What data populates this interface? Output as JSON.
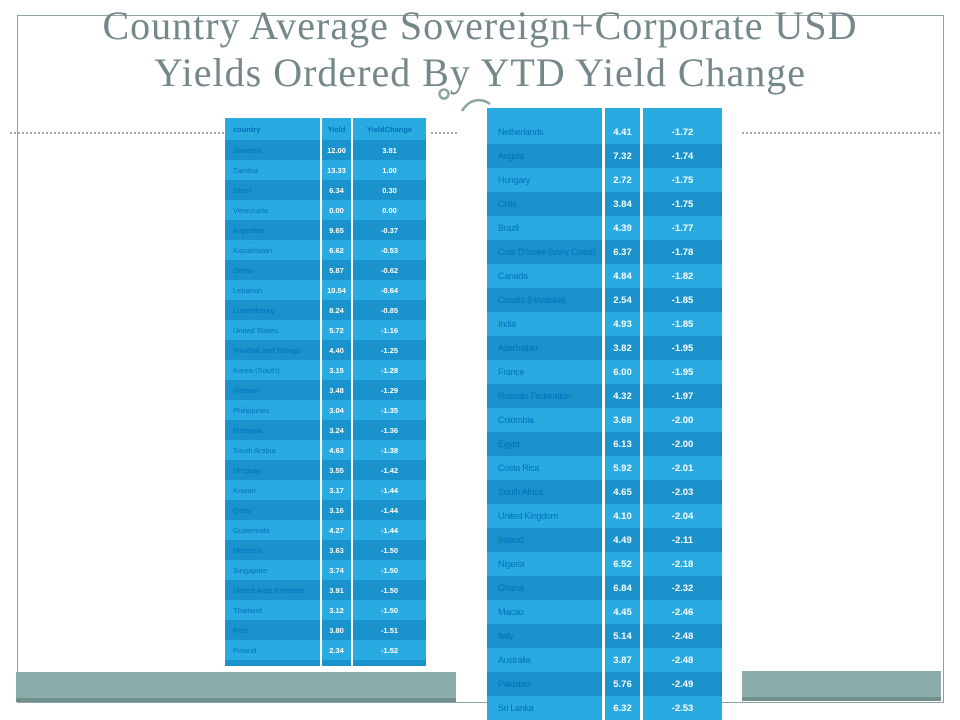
{
  "title": {
    "line1": "Country Average Sovereign+Corporate USD",
    "line2": "Yields Ordered By YTD Yield Change"
  },
  "left_table": {
    "headers": [
      "country",
      "Yield",
      "YieldChange"
    ],
    "rows": [
      [
        "Jamaica",
        "12.00",
        "3.81"
      ],
      [
        "Zambia",
        "13.33",
        "1.00"
      ],
      [
        "Israel",
        "6.34",
        "0.30"
      ],
      [
        "Venezuela",
        "0.00",
        "0.00"
      ],
      [
        "Argentina",
        "9.65",
        "-0.37"
      ],
      [
        "Kazakhstan",
        "6.62",
        "-0.53"
      ],
      [
        "Oman",
        "5.87",
        "-0.62"
      ],
      [
        "Lebanon",
        "10.54",
        "-0.64"
      ],
      [
        "Luxembourg",
        "8.24",
        "-0.85"
      ],
      [
        "United States",
        "5.72",
        "-1.16"
      ],
      [
        "Trinidad and Tobago",
        "4.40",
        "-1.25"
      ],
      [
        "Korea (South)",
        "3.15",
        "-1.28"
      ],
      [
        "Vietnam",
        "3.48",
        "-1.29"
      ],
      [
        "Philippines",
        "3.04",
        "-1.35"
      ],
      [
        "Malaysia",
        "3.24",
        "-1.36"
      ],
      [
        "Saudi Arabia",
        "4.63",
        "-1.38"
      ],
      [
        "Uruguay",
        "3.55",
        "-1.42"
      ],
      [
        "Kuwait",
        "3.17",
        "-1.44"
      ],
      [
        "Qatar",
        "3.16",
        "-1.44"
      ],
      [
        "Guatemala",
        "4.27",
        "-1.44"
      ],
      [
        "Morocco",
        "3.63",
        "-1.50"
      ],
      [
        "Singapore",
        "3.74",
        "-1.50"
      ],
      [
        "United Arab Emirates",
        "3.91",
        "-1.50"
      ],
      [
        "Thailand",
        "3.12",
        "-1.50"
      ],
      [
        "Peru",
        "3.80",
        "-1.51"
      ],
      [
        "Poland",
        "2.34",
        "-1.52"
      ]
    ]
  },
  "right_table": {
    "rows": [
      [
        "Netherlands",
        "4.41",
        "-1.72"
      ],
      [
        "Angola",
        "7.32",
        "-1.74"
      ],
      [
        "Hungary",
        "2.72",
        "-1.75"
      ],
      [
        "Chile",
        "3.84",
        "-1.75"
      ],
      [
        "Brazil",
        "4.39",
        "-1.77"
      ],
      [
        "Cote D'Ivoire (Ivory Coast)",
        "6.37",
        "-1.78"
      ],
      [
        "Canada",
        "4.84",
        "-1.82"
      ],
      [
        "Croatia (Hrvatska)",
        "2.54",
        "-1.85"
      ],
      [
        "India",
        "4.93",
        "-1.85"
      ],
      [
        "Azerbaijan",
        "3.82",
        "-1.95"
      ],
      [
        "France",
        "6.00",
        "-1.95"
      ],
      [
        "Russian Federation",
        "4.32",
        "-1.97"
      ],
      [
        "Colombia",
        "3.68",
        "-2.00"
      ],
      [
        "Egypt",
        "6.13",
        "-2.00"
      ],
      [
        "Costa Rica",
        "5.92",
        "-2.01"
      ],
      [
        "South Africa",
        "4.65",
        "-2.03"
      ],
      [
        "United Kingdom",
        "4.10",
        "-2.04"
      ],
      [
        "Ireland",
        "4.49",
        "-2.11"
      ],
      [
        "Nigeria",
        "6.52",
        "-2.18"
      ],
      [
        "Ghana",
        "6.84",
        "-2.32"
      ],
      [
        "Macau",
        "4.45",
        "-2.46"
      ],
      [
        "Italy",
        "5.14",
        "-2.48"
      ],
      [
        "Australia",
        "3.87",
        "-2.48"
      ],
      [
        "Pakistan",
        "5.76",
        "-2.49"
      ],
      [
        "Sri Lanka",
        "6.32",
        "-2.53"
      ]
    ]
  },
  "chart_data": {
    "type": "table",
    "title": "Country Average Sovereign+Corporate USD Yields Ordered By YTD Yield Change",
    "columns": [
      "country",
      "Yield",
      "YieldChange"
    ]
  },
  "colors": {
    "row_light": "#29abe2",
    "row_dark": "#1a92cb",
    "country_text": "#0071bc",
    "value_text": "#ffffff",
    "header_text": "#0071bc",
    "title_text": "#74888b",
    "band": "#8badaa",
    "band_edge": "#6f908c",
    "frame_border": "#8ca3a0",
    "dash": "#9fa9a9"
  }
}
